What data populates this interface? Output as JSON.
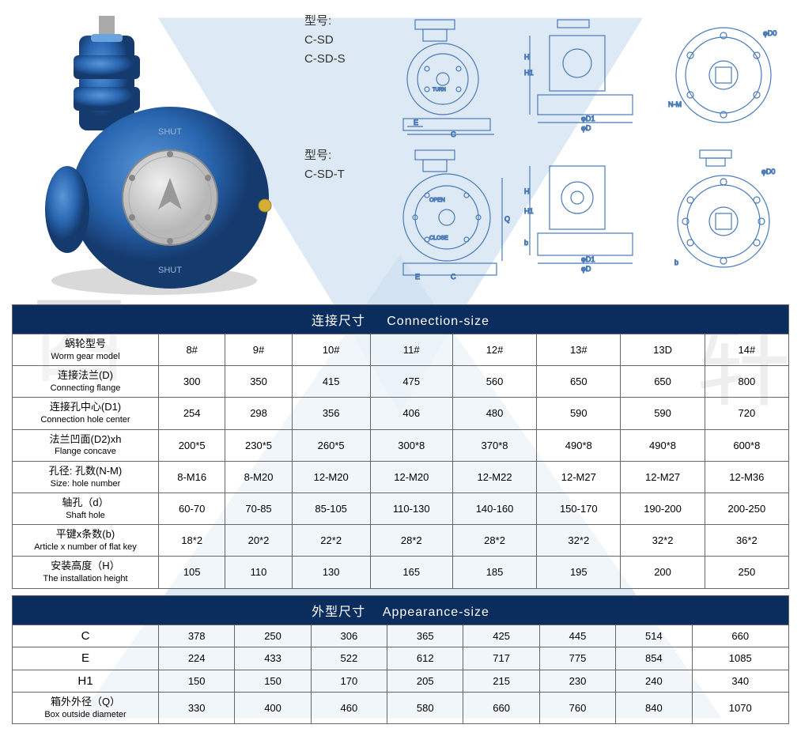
{
  "models": {
    "label_prefix": "型号:",
    "set1": [
      "C-SD",
      "C-SD-S"
    ],
    "set2": [
      "C-SD-T"
    ]
  },
  "table1": {
    "title_cn": "连接尺寸",
    "title_en": "Connection-size",
    "row_labels": [
      {
        "cn": "蜗轮型号",
        "en": "Worm gear model"
      },
      {
        "cn": "连接法兰(D)",
        "en": "Connecting flange"
      },
      {
        "cn": "连接孔中心(D1)",
        "en": "Connection hole center"
      },
      {
        "cn": "法兰凹面(D2)xh",
        "en": "Flange concave"
      },
      {
        "cn": "孔径: 孔数(N-M)",
        "en": "Size: hole number"
      },
      {
        "cn": "轴孔（d）",
        "en": "Shaft hole"
      },
      {
        "cn": "平键x条数(b)",
        "en": "Article x number of flat key"
      },
      {
        "cn": "安装高度（H）",
        "en": "The installation height"
      }
    ],
    "columns": [
      "8#",
      "9#",
      "10#",
      "11#",
      "12#",
      "13#",
      "13D",
      "14#"
    ],
    "rows": [
      [
        "300",
        "350",
        "415",
        "475",
        "560",
        "650",
        "650",
        "800"
      ],
      [
        "254",
        "298",
        "356",
        "406",
        "480",
        "590",
        "590",
        "720"
      ],
      [
        "200*5",
        "230*5",
        "260*5",
        "300*8",
        "370*8",
        "490*8",
        "490*8",
        "600*8"
      ],
      [
        "8-M16",
        "8-M20",
        "12-M20",
        "12-M20",
        "12-M22",
        "12-M27",
        "12-M27",
        "12-M36"
      ],
      [
        "60-70",
        "70-85",
        "85-105",
        "110-130",
        "140-160",
        "150-170",
        "190-200",
        "200-250"
      ],
      [
        "18*2",
        "20*2",
        "22*2",
        "28*2",
        "28*2",
        "32*2",
        "32*2",
        "36*2"
      ],
      [
        "105",
        "110",
        "130",
        "165",
        "185",
        "195",
        "200",
        "250"
      ]
    ]
  },
  "table2": {
    "title_cn": "外型尺寸",
    "title_en": "Appearance-size",
    "row_labels": [
      {
        "cn": "C",
        "en": ""
      },
      {
        "cn": "E",
        "en": ""
      },
      {
        "cn": "H1",
        "en": ""
      },
      {
        "cn": "箱外外径（Q）",
        "en": "Box outside diameter"
      }
    ],
    "rows": [
      [
        "378",
        "250",
        "306",
        "365",
        "425",
        "445",
        "514",
        "660"
      ],
      [
        "224",
        "433",
        "522",
        "612",
        "717",
        "775",
        "854",
        "1085"
      ],
      [
        "150",
        "150",
        "170",
        "205",
        "215",
        "230",
        "240",
        "340"
      ],
      [
        "330",
        "400",
        "460",
        "580",
        "660",
        "760",
        "840",
        "1070"
      ]
    ]
  },
  "colors": {
    "header_bg": "#0a2d5e",
    "header_fg": "#ffffff",
    "border": "#666666",
    "watermark": "#bfd4e8",
    "product_blue": "#2966b0",
    "drawing_blue": "#4a7ab8"
  }
}
